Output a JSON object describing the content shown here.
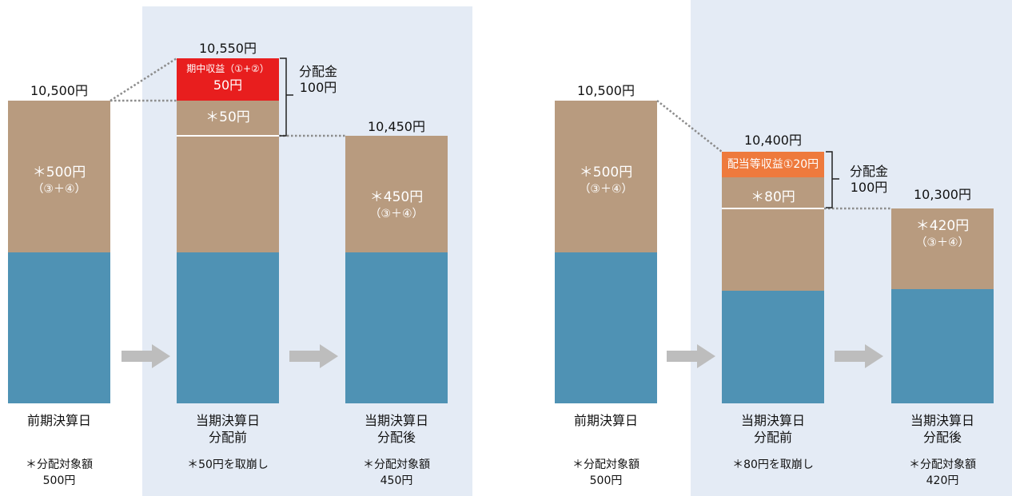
{
  "left": {
    "bar1": {
      "top_value": "10,500円",
      "tan_main": "＊500円",
      "tan_sub": "（③＋④）",
      "label": "前期決算日",
      "note_line1": "＊分配対象額",
      "note_line2": "500円"
    },
    "bar2": {
      "top_value": "10,550円",
      "red_line1": "期中収益（①+②）",
      "red_line2": "50円",
      "tan_main": "＊50円",
      "label_line1": "当期決算日",
      "label_line2": "分配前",
      "note": "＊50円を取崩し"
    },
    "bracket": {
      "line1": "分配金",
      "line2": "100円"
    },
    "bar3": {
      "top_value": "10,450円",
      "tan_main": "＊450円",
      "tan_sub": "（③＋④）",
      "label_line1": "当期決算日",
      "label_line2": "分配後",
      "note_line1": "＊分配対象額",
      "note_line2": "450円"
    }
  },
  "right": {
    "bar1": {
      "top_value": "10,500円",
      "tan_main": "＊500円",
      "tan_sub": "（③＋④）",
      "label": "前期決算日",
      "note_line1": "＊分配対象額",
      "note_line2": "500円"
    },
    "bar2": {
      "top_value": "10,400円",
      "orange_text": "配当等収益①20円",
      "tan_main": "＊80円",
      "label_line1": "当期決算日",
      "label_line2": "分配前",
      "note": "＊80円を取崩し"
    },
    "bracket": {
      "line1": "分配金",
      "line2": "100円"
    },
    "bar3": {
      "top_value": "10,300円",
      "tan_main": "＊420円",
      "tan_sub": "（③＋④）",
      "label_line1": "当期決算日",
      "label_line2": "分配後",
      "note_line1": "＊分配対象額",
      "note_line2": "420円"
    }
  },
  "colors": {
    "blue": "#4f92b4",
    "tan": "#b89b7f",
    "red": "#e81e1e",
    "orange": "#ee7a3d",
    "panel": "#e4ebf5",
    "arrow": "#bdbdbd"
  }
}
